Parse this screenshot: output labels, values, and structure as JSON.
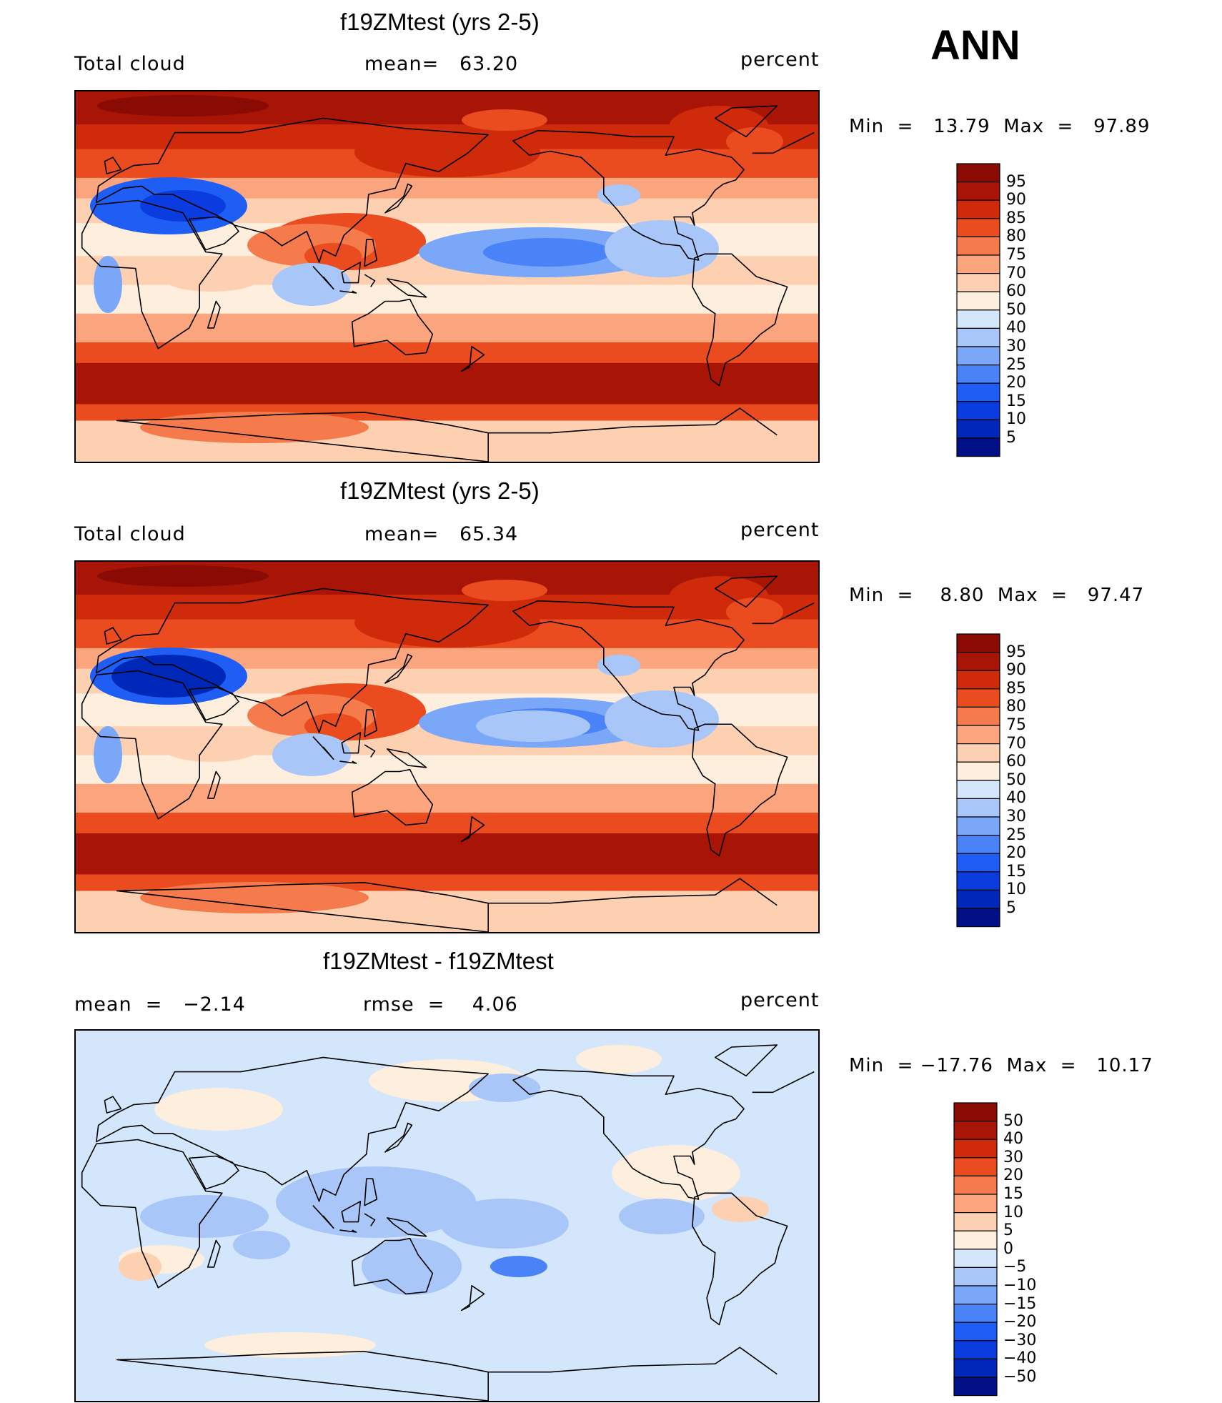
{
  "season": "ANN",
  "panels": [
    {
      "title": "f19ZMtest (yrs 2-5)",
      "left_label": "Total cloud",
      "center_label": "mean=   63.20",
      "right_label": "percent",
      "minmax": "Min  =   13.79  Max  =   97.89",
      "colorbar_labels": [
        "95",
        "90",
        "85",
        "80",
        "75",
        "70",
        "60",
        "50",
        "40",
        "30",
        "25",
        "20",
        "15",
        "10",
        "5"
      ]
    },
    {
      "title": "f19ZMtest (yrs 2-5)",
      "left_label": "Total cloud",
      "center_label": "mean=   65.34",
      "right_label": "percent",
      "minmax": "Min  =    8.80  Max  =   97.47",
      "colorbar_labels": [
        "95",
        "90",
        "85",
        "80",
        "75",
        "70",
        "60",
        "50",
        "40",
        "30",
        "25",
        "20",
        "15",
        "10",
        "5"
      ]
    },
    {
      "title": "f19ZMtest - f19ZMtest",
      "left_label": "mean  =   −2.14",
      "center_label": "rmse  =    4.06",
      "right_label": "percent",
      "minmax": "Min  = −17.76  Max  =   10.17",
      "colorbar_labels": [
        "50",
        "40",
        "30",
        "20",
        "15",
        "10",
        "5",
        "0",
        "−5",
        "−10",
        "−15",
        "−20",
        "−30",
        "−40",
        "−50"
      ]
    }
  ],
  "chart_data": [
    {
      "type": "heatmap",
      "title": "f19ZMtest (yrs 2-5)",
      "variable": "Total cloud",
      "units": "percent",
      "mean": 63.2,
      "min": 13.79,
      "max": 97.89,
      "contour_levels": [
        5,
        10,
        15,
        20,
        25,
        30,
        40,
        50,
        60,
        70,
        75,
        80,
        85,
        90,
        95
      ],
      "colors": [
        "#000f85",
        "#0028b8",
        "#0b3ce0",
        "#1f5ef5",
        "#4a82f7",
        "#7aa7f7",
        "#a8c6f7",
        "#d4e6fb",
        "#fdeedd",
        "#fcd0b0",
        "#fba57e",
        "#f57a4c",
        "#ea4b1f",
        "#cf2a0a",
        "#a81405",
        "#8a0a04"
      ]
    },
    {
      "type": "heatmap",
      "title": "f19ZMtest (yrs 2-5)",
      "variable": "Total cloud",
      "units": "percent",
      "mean": 65.34,
      "min": 8.8,
      "max": 97.47,
      "contour_levels": [
        5,
        10,
        15,
        20,
        25,
        30,
        40,
        50,
        60,
        70,
        75,
        80,
        85,
        90,
        95
      ],
      "colors": [
        "#000f85",
        "#0028b8",
        "#0b3ce0",
        "#1f5ef5",
        "#4a82f7",
        "#7aa7f7",
        "#a8c6f7",
        "#d4e6fb",
        "#fdeedd",
        "#fcd0b0",
        "#fba57e",
        "#f57a4c",
        "#ea4b1f",
        "#cf2a0a",
        "#a81405",
        "#8a0a04"
      ]
    },
    {
      "type": "heatmap",
      "title": "f19ZMtest - f19ZMtest",
      "units": "percent",
      "mean": -2.14,
      "rmse": 4.06,
      "min": -17.76,
      "max": 10.17,
      "contour_levels": [
        -50,
        -40,
        -30,
        -20,
        -15,
        -10,
        -5,
        0,
        5,
        10,
        15,
        20,
        30,
        40,
        50
      ],
      "colors": [
        "#000f85",
        "#0028b8",
        "#0b3ce0",
        "#1f5ef5",
        "#4a82f7",
        "#7aa7f7",
        "#a8c6f7",
        "#d4e6fb",
        "#fdeedd",
        "#fcd0b0",
        "#fba57e",
        "#f57a4c",
        "#ea4b1f",
        "#cf2a0a",
        "#a81405",
        "#8a0a04"
      ]
    }
  ]
}
